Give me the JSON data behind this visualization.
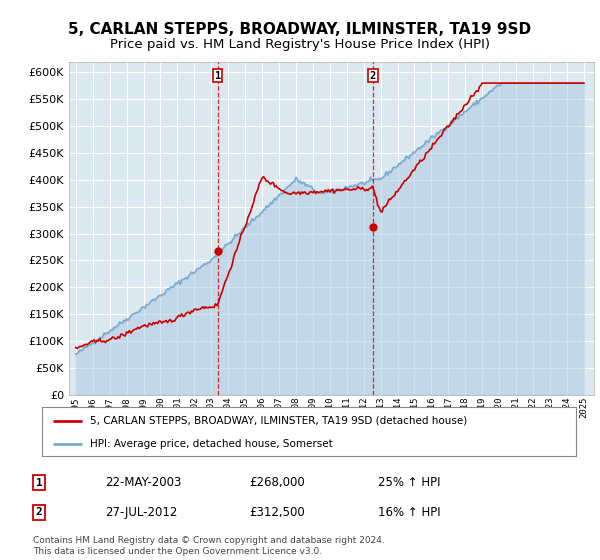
{
  "title": "5, CARLAN STEPPS, BROADWAY, ILMINSTER, TA19 9SD",
  "subtitle": "Price paid vs. HM Land Registry's House Price Index (HPI)",
  "legend_label_red": "5, CARLAN STEPPS, BROADWAY, ILMINSTER, TA19 9SD (detached house)",
  "legend_label_blue": "HPI: Average price, detached house, Somerset",
  "annotation1_date": "22-MAY-2003",
  "annotation1_price": "£268,000",
  "annotation1_hpi": "25% ↑ HPI",
  "annotation2_date": "27-JUL-2012",
  "annotation2_price": "£312,500",
  "annotation2_hpi": "16% ↑ HPI",
  "footer": "Contains HM Land Registry data © Crown copyright and database right 2024.\nThis data is licensed under the Open Government Licence v3.0.",
  "sale1_year": 2003.38,
  "sale1_price": 268000,
  "sale2_year": 2012.55,
  "sale2_price": 312500,
  "ylim": [
    0,
    620000
  ],
  "yticks": [
    0,
    50000,
    100000,
    150000,
    200000,
    250000,
    300000,
    350000,
    400000,
    450000,
    500000,
    550000,
    600000
  ],
  "xlim_min": 1994.6,
  "xlim_max": 2025.6,
  "plot_bg": "#dce8f0",
  "red_color": "#cc0000",
  "blue_color": "#7aaacf",
  "blue_fill": "#aac8e0",
  "grid_color": "#ffffff",
  "title_fontsize": 11,
  "subtitle_fontsize": 9.5
}
